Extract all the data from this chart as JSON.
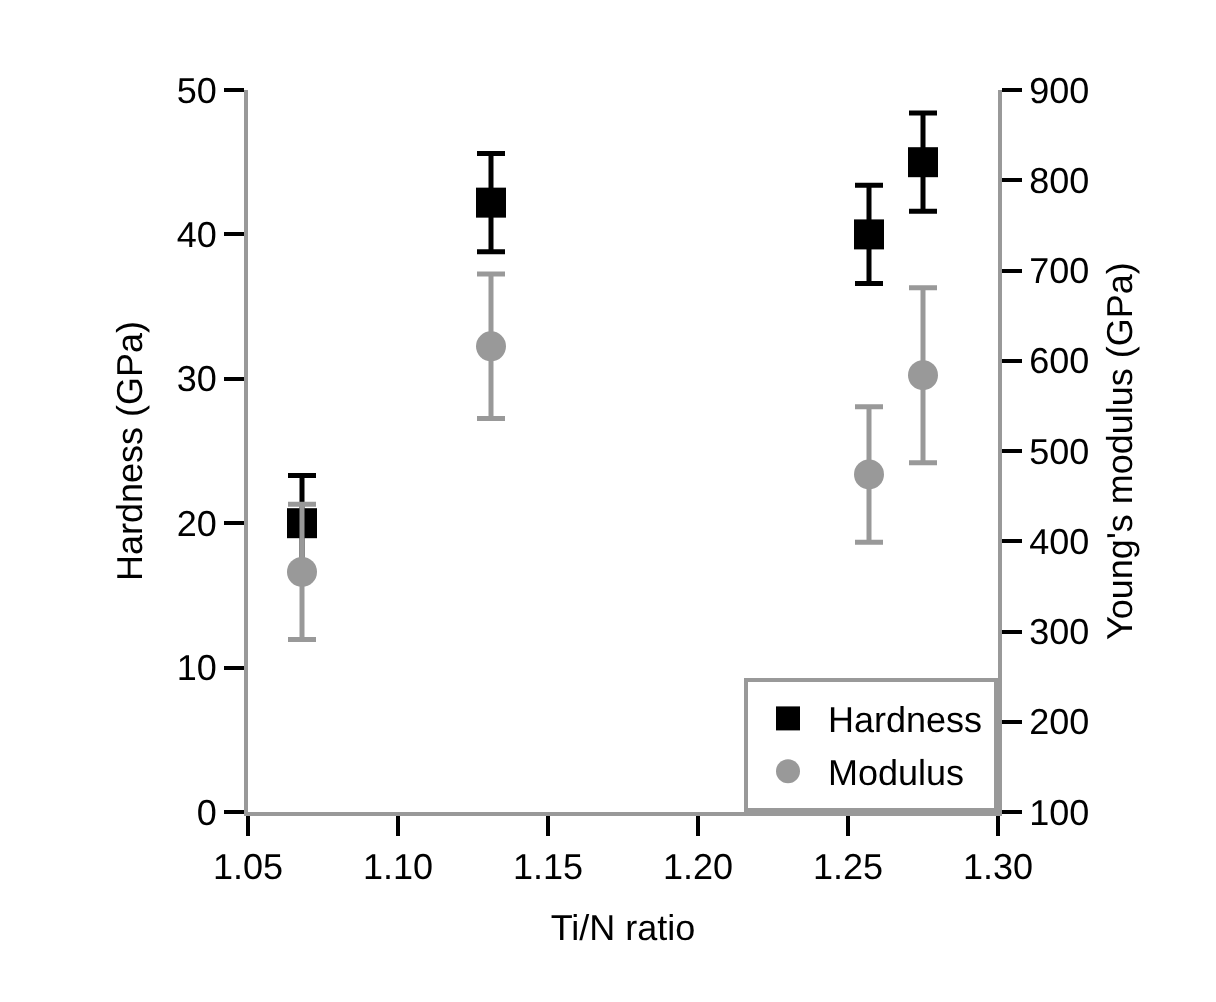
{
  "chart_data": {
    "type": "scatter",
    "xlabel": "Ti/N ratio",
    "ylabel": "Hardness (GPa)",
    "y2label": "Young's modulus (GPa)",
    "series": [
      {
        "name": "Hardness",
        "color": "#000000",
        "marker": "square",
        "x": [
          1.068,
          1.131,
          1.257,
          1.275
        ],
        "values": [
          20,
          42.2,
          40,
          45
        ],
        "errors": [
          3.3,
          3.4,
          3.4,
          3.4
        ]
      },
      {
        "name": "Modulus",
        "color": "#999999",
        "marker": "circle",
        "axis": "y2",
        "x": [
          1.068,
          1.131,
          1.257,
          1.275
        ],
        "values": [
          366,
          616,
          474,
          584
        ],
        "errors": [
          75,
          80,
          75,
          97
        ]
      }
    ],
    "xlim": [
      1.05,
      1.3
    ],
    "xticks": [
      {
        "value": 1.05,
        "label": "1.05"
      },
      {
        "value": 1.1,
        "label": "1.10"
      },
      {
        "value": 1.15,
        "label": "1.15"
      },
      {
        "value": 1.2,
        "label": "1.20"
      },
      {
        "value": 1.25,
        "label": "1.25"
      },
      {
        "value": 1.3,
        "label": "1.30"
      }
    ],
    "ylim": [
      0,
      50
    ],
    "yticks": [
      0,
      10,
      20,
      30,
      40,
      50
    ],
    "y2lim": [
      100,
      900
    ],
    "y2ticks": [
      100,
      200,
      300,
      400,
      500,
      600,
      700,
      800,
      900
    ],
    "legend": "bottom right"
  }
}
